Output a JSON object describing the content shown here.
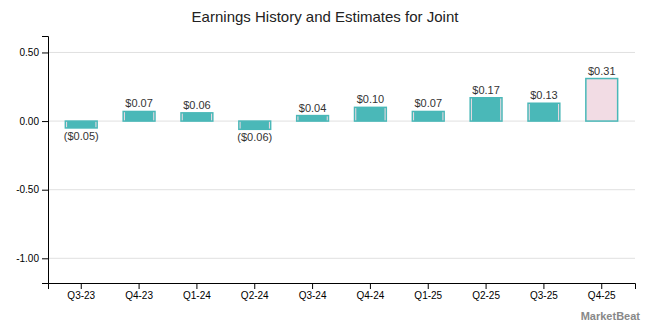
{
  "chart_data": {
    "type": "bar",
    "title": "Earnings History and Estimates for Joint",
    "categories": [
      "Q3-23",
      "Q4-23",
      "Q1-24",
      "Q2-24",
      "Q3-24",
      "Q4-24",
      "Q1-25",
      "Q2-25",
      "Q3-25",
      "Q4-25"
    ],
    "series": [
      {
        "color": "#4ab8b8",
        "values": [
          -0.05,
          0.07,
          0.06,
          -0.06,
          0.04,
          0.1,
          0.07,
          0.17,
          0.13,
          null
        ]
      },
      {
        "color": "#f2dce4",
        "values": [
          -0.05,
          0.07,
          0.06,
          -0.06,
          0.04,
          0.1,
          0.07,
          0.17,
          0.13,
          0.31
        ],
        "value_labels": [
          "($0.05)",
          "$0.07",
          "$0.06",
          "($0.06)",
          "$0.04",
          "$0.10",
          "$0.07",
          "$0.17",
          "$0.13",
          "$0.31"
        ]
      }
    ],
    "ylim": [
      -1.18,
      0.62
    ],
    "yticks": [
      {
        "value": 0.5,
        "label": "0.50"
      },
      {
        "value": 0.0,
        "label": "0.00"
      },
      {
        "value": -0.5,
        "label": "-0.50"
      },
      {
        "value": -1.0,
        "label": "-1.00"
      }
    ],
    "grid": true,
    "annotations": [
      {
        "text": "MarketBeat"
      }
    ]
  }
}
